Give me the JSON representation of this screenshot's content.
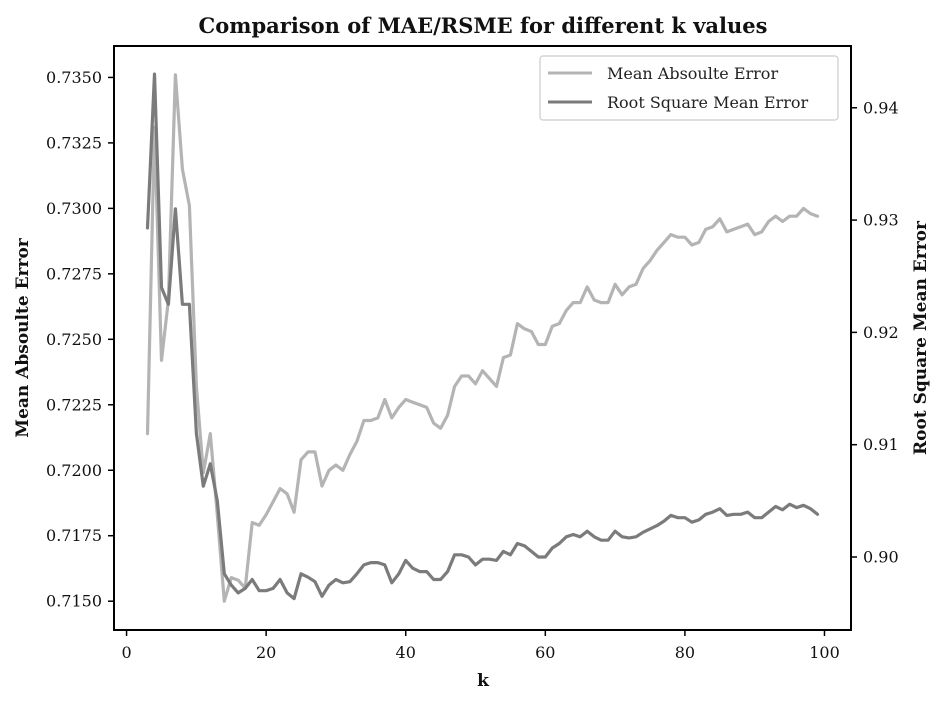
{
  "chart_data": {
    "type": "line",
    "title": "Comparison of MAE/RSME for different k values",
    "xlabel": "k",
    "ylabel_left": "Mean Absoulte Error",
    "ylabel_right": "Root Square Mean Error",
    "xlim": [
      -1.8,
      103.8
    ],
    "ylim_left": [
      0.7139,
      0.7362
    ],
    "ylim_right": [
      0.8935,
      0.9455
    ],
    "xticks": [
      0,
      20,
      40,
      60,
      80,
      100
    ],
    "xtick_labels": [
      "0",
      "20",
      "40",
      "60",
      "80",
      "100"
    ],
    "yticks_left": [
      0.715,
      0.7175,
      0.72,
      0.7225,
      0.725,
      0.7275,
      0.73,
      0.7325,
      0.735
    ],
    "ytick_labels_left": [
      "0.7150",
      "0.7175",
      "0.7200",
      "0.7225",
      "0.7250",
      "0.7275",
      "0.7300",
      "0.7325",
      "0.7350"
    ],
    "yticks_right": [
      0.9,
      0.91,
      0.92,
      0.93,
      0.94
    ],
    "ytick_labels_right": [
      "0.90",
      "0.91",
      "0.92",
      "0.93",
      "0.94"
    ],
    "legend_position": "top-right",
    "grid": false,
    "series": [
      {
        "name": "Mean Absoulte Error",
        "axis": "left",
        "color": "#b4b4b4",
        "x": [
          3,
          4,
          5,
          6,
          7,
          8,
          9,
          10,
          11,
          12,
          13,
          14,
          15,
          16,
          17,
          18,
          19,
          20,
          21,
          22,
          23,
          24,
          25,
          26,
          27,
          28,
          29,
          30,
          31,
          32,
          33,
          34,
          35,
          36,
          37,
          38,
          39,
          40,
          41,
          42,
          43,
          44,
          45,
          46,
          47,
          48,
          49,
          50,
          51,
          52,
          53,
          54,
          55,
          56,
          57,
          58,
          59,
          60,
          61,
          62,
          63,
          64,
          65,
          66,
          67,
          68,
          69,
          70,
          71,
          72,
          73,
          74,
          75,
          76,
          77,
          78,
          79,
          80,
          81,
          82,
          83,
          84,
          85,
          86,
          87,
          88,
          89,
          90,
          91,
          92,
          93,
          94,
          95,
          96,
          97,
          98,
          99
        ],
        "y": [
          0.7214,
          0.7331,
          0.7242,
          0.7265,
          0.7351,
          0.7315,
          0.7301,
          0.7232,
          0.7199,
          0.7214,
          0.7183,
          0.715,
          0.7159,
          0.7158,
          0.7155,
          0.718,
          0.7179,
          0.7183,
          0.7188,
          0.7193,
          0.7191,
          0.7184,
          0.7204,
          0.7207,
          0.7207,
          0.7194,
          0.72,
          0.7202,
          0.72,
          0.7206,
          0.7211,
          0.7219,
          0.7219,
          0.722,
          0.7227,
          0.722,
          0.7224,
          0.7227,
          0.7226,
          0.7225,
          0.7224,
          0.7218,
          0.7216,
          0.7221,
          0.7232,
          0.7236,
          0.7236,
          0.7233,
          0.7238,
          0.7235,
          0.7232,
          0.7243,
          0.7244,
          0.7256,
          0.7254,
          0.7253,
          0.7248,
          0.7248,
          0.7255,
          0.7256,
          0.7261,
          0.7264,
          0.7264,
          0.727,
          0.7265,
          0.7264,
          0.7264,
          0.7271,
          0.7267,
          0.727,
          0.7271,
          0.7277,
          0.728,
          0.7284,
          0.7287,
          0.729,
          0.7289,
          0.7289,
          0.7286,
          0.7287,
          0.7292,
          0.7293,
          0.7296,
          0.7291,
          0.7292,
          0.7293,
          0.7294,
          0.729,
          0.7291,
          0.7295,
          0.7297,
          0.7295,
          0.7297,
          0.7297,
          0.73,
          0.7298,
          0.7297
        ]
      },
      {
        "name": "Root Square Mean Error",
        "axis": "right",
        "color": "#7b7b7b",
        "x": [
          3,
          4,
          5,
          6,
          7,
          8,
          9,
          10,
          11,
          12,
          13,
          14,
          15,
          16,
          17,
          18,
          19,
          20,
          21,
          22,
          23,
          24,
          25,
          26,
          27,
          28,
          29,
          30,
          31,
          32,
          33,
          34,
          35,
          36,
          37,
          38,
          39,
          40,
          41,
          42,
          43,
          44,
          45,
          46,
          47,
          48,
          49,
          50,
          51,
          52,
          53,
          54,
          55,
          56,
          57,
          58,
          59,
          60,
          61,
          62,
          63,
          64,
          65,
          66,
          67,
          68,
          69,
          70,
          71,
          72,
          73,
          74,
          75,
          76,
          77,
          78,
          79,
          80,
          81,
          82,
          83,
          84,
          85,
          86,
          87,
          88,
          89,
          90,
          91,
          92,
          93,
          94,
          95,
          96,
          97,
          98,
          99
        ],
        "y": [
          0.9293,
          0.943,
          0.924,
          0.9225,
          0.931,
          0.9225,
          0.9225,
          0.911,
          0.9063,
          0.9083,
          0.905,
          0.8985,
          0.8975,
          0.8968,
          0.8972,
          0.898,
          0.897,
          0.897,
          0.8972,
          0.898,
          0.8968,
          0.8963,
          0.8985,
          0.8982,
          0.8978,
          0.8965,
          0.8975,
          0.898,
          0.8977,
          0.8978,
          0.8985,
          0.8993,
          0.8995,
          0.8995,
          0.8993,
          0.8977,
          0.8985,
          0.8997,
          0.899,
          0.8987,
          0.8987,
          0.898,
          0.898,
          0.8987,
          0.9002,
          0.9002,
          0.9,
          0.8993,
          0.8998,
          0.8998,
          0.8997,
          0.9005,
          0.9002,
          0.9012,
          0.901,
          0.9005,
          0.9,
          0.9,
          0.9008,
          0.9012,
          0.9018,
          0.902,
          0.9018,
          0.9023,
          0.9018,
          0.9015,
          0.9015,
          0.9023,
          0.9018,
          0.9017,
          0.9018,
          0.9022,
          0.9025,
          0.9028,
          0.9032,
          0.9037,
          0.9035,
          0.9035,
          0.9031,
          0.9033,
          0.9038,
          0.904,
          0.9043,
          0.9037,
          0.9038,
          0.9038,
          0.904,
          0.9035,
          0.9035,
          0.904,
          0.9045,
          0.9042,
          0.9047,
          0.9044,
          0.9046,
          0.9043,
          0.9038
        ]
      }
    ]
  }
}
